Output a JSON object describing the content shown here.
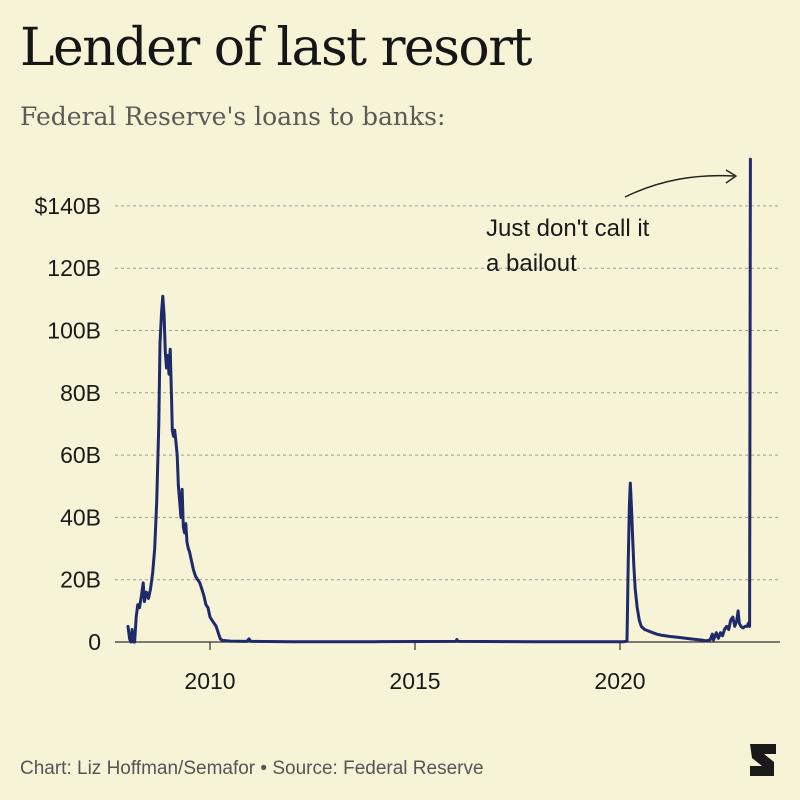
{
  "header": {
    "title": "Lender of last resort",
    "subtitle": "Federal Reserve's loans to banks:"
  },
  "footer": {
    "credit": "Chart: Liz Hoffman/Semafor • Source: Federal Reserve"
  },
  "logo": {
    "icon": "semafor-logo-icon"
  },
  "colors": {
    "background": "#f7f3d6",
    "line": "#1f2a6b",
    "grid": "#9a9a9a",
    "text": "#1a1a1a"
  },
  "chart_data": {
    "type": "line",
    "title": "Lender of last resort",
    "subtitle": "Federal Reserve's loans to banks:",
    "xlabel": "",
    "ylabel": "",
    "xlim": [
      2008.0,
      2023.6
    ],
    "ylim": [
      0,
      155
    ],
    "grid": "horizontal-dashed",
    "x_ticks": [
      {
        "value": 2010,
        "label": "2010"
      },
      {
        "value": 2015,
        "label": "2015"
      },
      {
        "value": 2020,
        "label": "2020"
      }
    ],
    "y_ticks": [
      {
        "value": 0,
        "label": "0"
      },
      {
        "value": 20,
        "label": "20B"
      },
      {
        "value": 40,
        "label": "40B"
      },
      {
        "value": 60,
        "label": "60B"
      },
      {
        "value": 80,
        "label": "80B"
      },
      {
        "value": 100,
        "label": "100B"
      },
      {
        "value": 120,
        "label": "120B"
      },
      {
        "value": 140,
        "label": "$140B"
      }
    ],
    "annotation": {
      "lines": [
        "Just don't call it",
        "a bailout"
      ]
    },
    "series": [
      {
        "color": "#1f2a6b",
        "points": [
          [
            2008.0,
            5
          ],
          [
            2008.04,
            1
          ],
          [
            2008.07,
            0
          ],
          [
            2008.1,
            4
          ],
          [
            2008.13,
            0
          ],
          [
            2008.16,
            0
          ],
          [
            2008.2,
            8
          ],
          [
            2008.24,
            12
          ],
          [
            2008.28,
            11
          ],
          [
            2008.33,
            15
          ],
          [
            2008.37,
            19
          ],
          [
            2008.4,
            13
          ],
          [
            2008.45,
            16
          ],
          [
            2008.5,
            14
          ],
          [
            2008.55,
            17
          ],
          [
            2008.6,
            22
          ],
          [
            2008.65,
            30
          ],
          [
            2008.7,
            45
          ],
          [
            2008.75,
            70
          ],
          [
            2008.78,
            96
          ],
          [
            2008.82,
            106
          ],
          [
            2008.85,
            111
          ],
          [
            2008.88,
            105
          ],
          [
            2008.91,
            93
          ],
          [
            2008.94,
            88
          ],
          [
            2008.97,
            92
          ],
          [
            2009.0,
            86
          ],
          [
            2009.03,
            94
          ],
          [
            2009.06,
            79
          ],
          [
            2009.08,
            68
          ],
          [
            2009.11,
            66
          ],
          [
            2009.14,
            68
          ],
          [
            2009.17,
            64
          ],
          [
            2009.2,
            60
          ],
          [
            2009.23,
            50
          ],
          [
            2009.26,
            45
          ],
          [
            2009.29,
            40
          ],
          [
            2009.32,
            49
          ],
          [
            2009.35,
            37
          ],
          [
            2009.38,
            35
          ],
          [
            2009.41,
            38
          ],
          [
            2009.44,
            32
          ],
          [
            2009.47,
            30
          ],
          [
            2009.5,
            29
          ],
          [
            2009.55,
            26
          ],
          [
            2009.6,
            23
          ],
          [
            2009.65,
            21
          ],
          [
            2009.7,
            20
          ],
          [
            2009.75,
            19
          ],
          [
            2009.8,
            17
          ],
          [
            2009.85,
            15
          ],
          [
            2009.9,
            12
          ],
          [
            2009.95,
            11
          ],
          [
            2010.0,
            8
          ],
          [
            2010.05,
            7
          ],
          [
            2010.1,
            6
          ],
          [
            2010.15,
            5
          ],
          [
            2010.2,
            3
          ],
          [
            2010.25,
            1
          ],
          [
            2010.3,
            0.5
          ],
          [
            2010.5,
            0.3
          ],
          [
            2010.9,
            0.2
          ],
          [
            2010.95,
            1
          ],
          [
            2011.0,
            0.2
          ],
          [
            2012.0,
            0.1
          ],
          [
            2014.0,
            0.1
          ],
          [
            2016.0,
            0.2
          ],
          [
            2016.02,
            0.8
          ],
          [
            2016.05,
            0.2
          ],
          [
            2018.0,
            0.1
          ],
          [
            2019.5,
            0.1
          ],
          [
            2020.1,
            0.1
          ],
          [
            2020.17,
            0.3
          ],
          [
            2020.2,
            25
          ],
          [
            2020.23,
            44
          ],
          [
            2020.25,
            51
          ],
          [
            2020.28,
            43
          ],
          [
            2020.31,
            33
          ],
          [
            2020.34,
            24
          ],
          [
            2020.37,
            17
          ],
          [
            2020.42,
            11
          ],
          [
            2020.47,
            7
          ],
          [
            2020.52,
            5
          ],
          [
            2020.6,
            4
          ],
          [
            2020.7,
            3.5
          ],
          [
            2020.8,
            3
          ],
          [
            2020.9,
            2.5
          ],
          [
            2021.0,
            2.2
          ],
          [
            2021.2,
            1.8
          ],
          [
            2021.4,
            1.5
          ],
          [
            2021.6,
            1.2
          ],
          [
            2021.8,
            0.9
          ],
          [
            2022.0,
            0.6
          ],
          [
            2022.1,
            0.4
          ],
          [
            2022.2,
            0.7
          ],
          [
            2022.25,
            2.5
          ],
          [
            2022.28,
            0.6
          ],
          [
            2022.35,
            3
          ],
          [
            2022.4,
            1.2
          ],
          [
            2022.45,
            3
          ],
          [
            2022.5,
            2
          ],
          [
            2022.55,
            4
          ],
          [
            2022.6,
            5
          ],
          [
            2022.65,
            4
          ],
          [
            2022.7,
            7
          ],
          [
            2022.75,
            8
          ],
          [
            2022.8,
            5
          ],
          [
            2022.85,
            7
          ],
          [
            2022.88,
            10
          ],
          [
            2022.91,
            6
          ],
          [
            2022.95,
            5
          ],
          [
            2023.0,
            4.5
          ],
          [
            2023.05,
            5
          ],
          [
            2023.1,
            5
          ],
          [
            2023.13,
            6
          ],
          [
            2023.16,
            5
          ],
          [
            2023.18,
            155
          ]
        ]
      }
    ]
  }
}
